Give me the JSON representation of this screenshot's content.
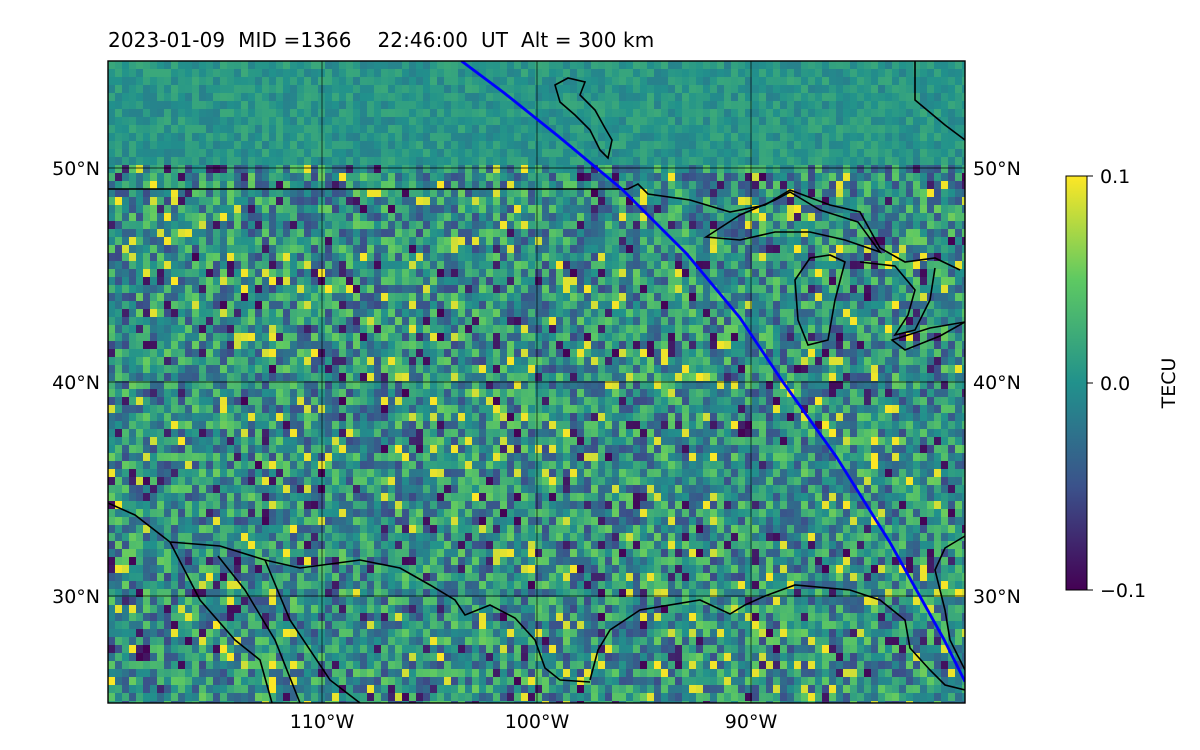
{
  "title": "2023-01-09  MID =1366    22:46:00  UT  Alt = 300 km",
  "map": {
    "lon_range": [
      -120,
      -80
    ],
    "lat_range": [
      25,
      55
    ],
    "lat_ticks": [
      {
        "value": 30,
        "label": "30°N"
      },
      {
        "value": 40,
        "label": "40°N"
      },
      {
        "value": 50,
        "label": "50°N"
      }
    ],
    "lon_ticks": [
      {
        "value": -110,
        "label": "110°W"
      },
      {
        "value": -100,
        "label": "100°W"
      },
      {
        "value": -90,
        "label": "90°W"
      }
    ],
    "gridlines": true,
    "colormap": [
      "#440154",
      "#3b528b",
      "#21918c",
      "#5ec962",
      "#fde725"
    ],
    "track_color": "#0000ff",
    "track": [
      [
        -103.5,
        55
      ],
      [
        -101.5,
        53.5
      ],
      [
        -99,
        51.5
      ],
      [
        -96,
        49
      ],
      [
        -93,
        46
      ],
      [
        -90.5,
        43
      ],
      [
        -88.5,
        40
      ],
      [
        -86,
        36.5
      ],
      [
        -83.5,
        32.5
      ],
      [
        -81,
        28
      ],
      [
        -80,
        26
      ]
    ]
  },
  "colorbar": {
    "label": "TECU",
    "ticks": [
      {
        "value": 0.1,
        "label": "0.1"
      },
      {
        "value": 0.0,
        "label": "0.0"
      },
      {
        "value": -0.1,
        "label": "−0.1"
      }
    ],
    "range": [
      -0.1,
      0.1
    ]
  }
}
